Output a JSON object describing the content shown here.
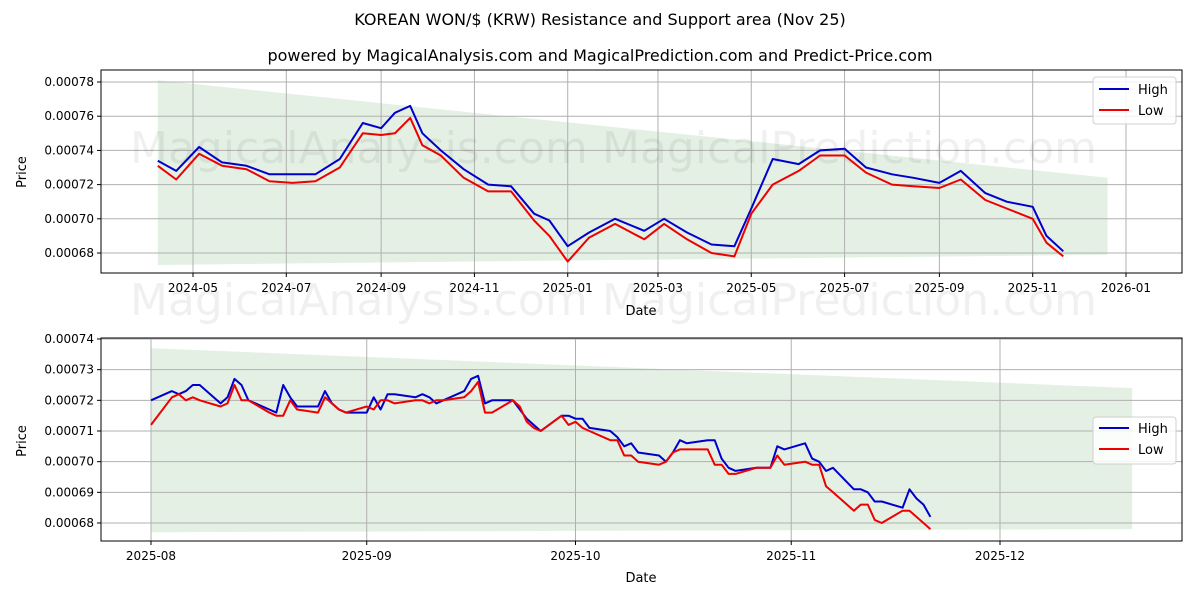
{
  "header": {
    "title": "KOREAN WON/$ (KRW) Resistance and Support area (Nov 25)",
    "subtitle": "powered by MagicalAnalysis.com and MagicalPrediction.com and Predict-Price.com"
  },
  "watermarks": [
    "MagicalAnalysis.com",
    "MagicalPrediction.com"
  ],
  "colors": {
    "high": "#0000cc",
    "low": "#ee0000",
    "band": "#d8ead8",
    "grid": "#b0b0b0"
  },
  "chart_data": [
    {
      "type": "line",
      "title": "",
      "xlabel": "Date",
      "ylabel": "Price",
      "ylim": [
        0.000667,
        0.000786
      ],
      "x_ticks": [
        "2024-05",
        "2024-07",
        "2024-09",
        "2024-11",
        "2025-01",
        "2025-03",
        "2025-05",
        "2025-07",
        "2025-09",
        "2025-11",
        "2026-01"
      ],
      "y_ticks": [
        "0.00068",
        "0.00070",
        "0.00072",
        "0.00074",
        "0.00076",
        "0.00078"
      ],
      "grid": true,
      "legend": {
        "position": "upper right",
        "entries": [
          "High",
          "Low"
        ]
      },
      "band": {
        "label": "Resistance/Support area",
        "x_start": "2024-04-08",
        "x_end": "2025-12-20",
        "upper": [
          0.000781,
          0.000724
        ],
        "lower": [
          0.000673,
          0.000679
        ]
      },
      "x": [
        "2024-04-08",
        "2024-04-20",
        "2024-05-05",
        "2024-05-20",
        "2024-06-05",
        "2024-06-20",
        "2024-07-05",
        "2024-07-20",
        "2024-08-05",
        "2024-08-20",
        "2024-09-01",
        "2024-09-10",
        "2024-09-20",
        "2024-09-28",
        "2024-10-10",
        "2024-10-25",
        "2024-11-10",
        "2024-11-25",
        "2024-12-10",
        "2024-12-20",
        "2025-01-01",
        "2025-01-15",
        "2025-02-01",
        "2025-02-20",
        "2025-03-05",
        "2025-03-20",
        "2025-04-05",
        "2025-04-20",
        "2025-05-01",
        "2025-05-15",
        "2025-06-01",
        "2025-06-15",
        "2025-07-01",
        "2025-07-15",
        "2025-08-01",
        "2025-08-15",
        "2025-09-01",
        "2025-09-15",
        "2025-10-01",
        "2025-10-15",
        "2025-11-01",
        "2025-11-10",
        "2025-11-21"
      ],
      "series": [
        {
          "name": "High",
          "values": [
            0.000734,
            0.000728,
            0.000742,
            0.000733,
            0.000731,
            0.000726,
            0.000726,
            0.000726,
            0.000735,
            0.000756,
            0.000753,
            0.000762,
            0.000766,
            0.00075,
            0.00074,
            0.000729,
            0.00072,
            0.000719,
            0.000703,
            0.000699,
            0.000684,
            0.000692,
            0.0007,
            0.000693,
            0.0007,
            0.000692,
            0.000685,
            0.000684,
            0.000706,
            0.000735,
            0.000732,
            0.00074,
            0.000741,
            0.00073,
            0.000726,
            0.000724,
            0.000721,
            0.000728,
            0.000715,
            0.00071,
            0.000707,
            0.00069,
            0.000681
          ]
        },
        {
          "name": "Low",
          "values": [
            0.000731,
            0.000723,
            0.000738,
            0.000731,
            0.000729,
            0.000722,
            0.000721,
            0.000722,
            0.00073,
            0.00075,
            0.000749,
            0.00075,
            0.000759,
            0.000743,
            0.000737,
            0.000724,
            0.000716,
            0.000716,
            0.000699,
            0.00069,
            0.000675,
            0.000689,
            0.000697,
            0.000688,
            0.000697,
            0.000688,
            0.00068,
            0.000678,
            0.000703,
            0.00072,
            0.000728,
            0.000737,
            0.000737,
            0.000727,
            0.00072,
            0.000719,
            0.000718,
            0.000723,
            0.000711,
            0.000706,
            0.0007,
            0.000686,
            0.000678
          ]
        }
      ]
    },
    {
      "type": "line",
      "title": "",
      "xlabel": "Date",
      "ylabel": "Price",
      "ylim": [
        0.000675,
        0.00074
      ],
      "x_ticks": [
        "2025-08",
        "2025-09",
        "2025-10",
        "2025-11",
        "2025-12"
      ],
      "y_ticks": [
        "0.00068",
        "0.00069",
        "0.00070",
        "0.00071",
        "0.00072",
        "0.00073",
        "0.00074"
      ],
      "grid": true,
      "legend": {
        "position": "center right",
        "entries": [
          "High",
          "Low"
        ]
      },
      "band": {
        "label": "Resistance/Support area",
        "x_start": "2025-08-01",
        "x_end": "2025-12-20",
        "upper": [
          0.000737,
          0.000724
        ],
        "lower": [
          0.000677,
          0.000678
        ]
      },
      "x": [
        "2025-08-01",
        "2025-08-04",
        "2025-08-05",
        "2025-08-06",
        "2025-08-07",
        "2025-08-08",
        "2025-08-11",
        "2025-08-12",
        "2025-08-13",
        "2025-08-14",
        "2025-08-15",
        "2025-08-18",
        "2025-08-19",
        "2025-08-20",
        "2025-08-21",
        "2025-08-22",
        "2025-08-25",
        "2025-08-26",
        "2025-08-27",
        "2025-08-28",
        "2025-08-29",
        "2025-09-01",
        "2025-09-02",
        "2025-09-03",
        "2025-09-04",
        "2025-09-05",
        "2025-09-08",
        "2025-09-09",
        "2025-09-10",
        "2025-09-11",
        "2025-09-12",
        "2025-09-15",
        "2025-09-16",
        "2025-09-17",
        "2025-09-18",
        "2025-09-19",
        "2025-09-22",
        "2025-09-23",
        "2025-09-24",
        "2025-09-25",
        "2025-09-26",
        "2025-09-29",
        "2025-09-30",
        "2025-10-01",
        "2025-10-02",
        "2025-10-03",
        "2025-10-06",
        "2025-10-07",
        "2025-10-08",
        "2025-10-09",
        "2025-10-10",
        "2025-10-13",
        "2025-10-14",
        "2025-10-15",
        "2025-10-16",
        "2025-10-17",
        "2025-10-20",
        "2025-10-21",
        "2025-10-22",
        "2025-10-23",
        "2025-10-24",
        "2025-10-27",
        "2025-10-28",
        "2025-10-29",
        "2025-10-30",
        "2025-10-31",
        "2025-11-03",
        "2025-11-04",
        "2025-11-05",
        "2025-11-06",
        "2025-11-07",
        "2025-11-10",
        "2025-11-11",
        "2025-11-12",
        "2025-11-13",
        "2025-11-14",
        "2025-11-17",
        "2025-11-18",
        "2025-11-19",
        "2025-11-20",
        "2025-11-21"
      ],
      "series": [
        {
          "name": "High",
          "values": [
            0.00072,
            0.000723,
            0.000722,
            0.000723,
            0.000725,
            0.000725,
            0.000719,
            0.000721,
            0.000727,
            0.000725,
            0.00072,
            0.000717,
            0.000716,
            0.000725,
            0.000721,
            0.000718,
            0.000718,
            0.000723,
            0.000719,
            0.000717,
            0.000716,
            0.000716,
            0.000721,
            0.000717,
            0.000722,
            0.000722,
            0.000721,
            0.000722,
            0.000721,
            0.000719,
            0.00072,
            0.000723,
            0.000727,
            0.000728,
            0.000719,
            0.00072,
            0.00072,
            0.000717,
            0.000714,
            0.000712,
            0.00071,
            0.000715,
            0.000715,
            0.000714,
            0.000714,
            0.000711,
            0.00071,
            0.000708,
            0.000705,
            0.000706,
            0.000703,
            0.000702,
            0.0007,
            0.000703,
            0.000707,
            0.000706,
            0.000707,
            0.000707,
            0.000701,
            0.000698,
            0.000697,
            0.000698,
            0.000698,
            0.000698,
            0.000705,
            0.000704,
            0.000706,
            0.000701,
            0.0007,
            0.000697,
            0.000698,
            0.000691,
            0.000691,
            0.00069,
            0.000687,
            0.000687,
            0.000685,
            0.000691,
            0.000688,
            0.000686,
            0.000682
          ]
        },
        {
          "name": "Low",
          "values": [
            0.000712,
            0.000721,
            0.000722,
            0.00072,
            0.000721,
            0.00072,
            0.000718,
            0.000719,
            0.000725,
            0.00072,
            0.00072,
            0.000716,
            0.000715,
            0.000715,
            0.00072,
            0.000717,
            0.000716,
            0.000721,
            0.000719,
            0.000717,
            0.000716,
            0.000718,
            0.000717,
            0.00072,
            0.00072,
            0.000719,
            0.00072,
            0.00072,
            0.000719,
            0.00072,
            0.00072,
            0.000721,
            0.000723,
            0.000726,
            0.000716,
            0.000716,
            0.00072,
            0.000718,
            0.000713,
            0.000711,
            0.00071,
            0.000715,
            0.000712,
            0.000713,
            0.000711,
            0.00071,
            0.000707,
            0.000707,
            0.000702,
            0.000702,
            0.0007,
            0.000699,
            0.0007,
            0.000703,
            0.000704,
            0.000704,
            0.000704,
            0.000699,
            0.000699,
            0.000696,
            0.000696,
            0.000698,
            0.000698,
            0.000698,
            0.000702,
            0.000699,
            0.0007,
            0.000699,
            0.000699,
            0.000692,
            0.00069,
            0.000684,
            0.000686,
            0.000686,
            0.000681,
            0.00068,
            0.000684,
            0.000684,
            0.000682,
            0.00068,
            0.000678
          ]
        }
      ]
    }
  ]
}
